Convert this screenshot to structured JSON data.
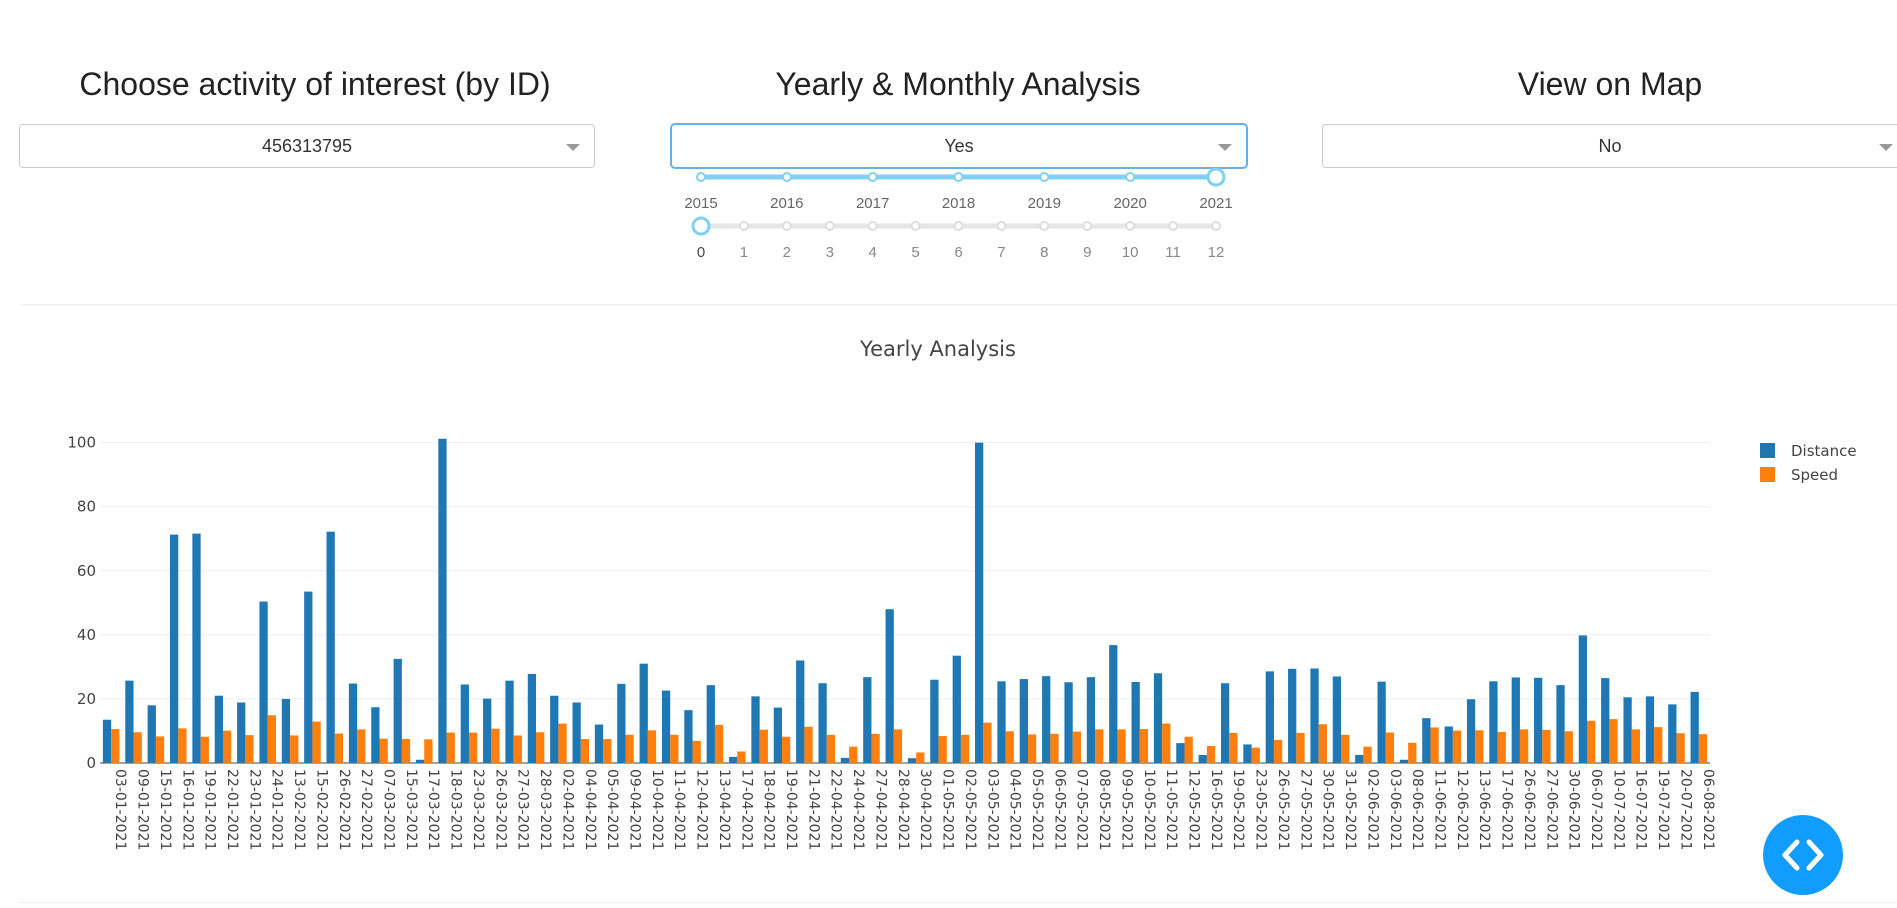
{
  "controls": {
    "activity": {
      "title": "Choose activity of interest (by ID)",
      "value": "456313795"
    },
    "analysis": {
      "title": "Yearly & Monthly Analysis",
      "value": "Yes"
    },
    "map": {
      "title": "View on Map",
      "value": "No"
    }
  },
  "year_slider": {
    "marks": [
      "2015",
      "2016",
      "2017",
      "2018",
      "2019",
      "2020",
      "2021"
    ],
    "selected": "2021"
  },
  "month_slider": {
    "marks": [
      "0",
      "1",
      "2",
      "3",
      "4",
      "5",
      "6",
      "7",
      "8",
      "9",
      "10",
      "11",
      "12"
    ],
    "selected": "0"
  },
  "colors": {
    "distance": "#1f77b4",
    "speed": "#ff7f0e",
    "accent": "#119dff",
    "slider": "#7fd0f2"
  },
  "icons": {
    "fab": "code-arrows-icon",
    "caret": "chevron-down-icon"
  },
  "chart_data": {
    "type": "bar",
    "title": "Yearly Analysis",
    "xlabel": "",
    "ylabel": "",
    "ylim": [
      0,
      103
    ],
    "yticks": [
      0,
      20,
      40,
      60,
      80,
      100
    ],
    "legend_position": "top-right",
    "grid": true,
    "categories": [
      "03-01-2021",
      "09-01-2021",
      "15-01-2021",
      "16-01-2021",
      "19-01-2021",
      "22-01-2021",
      "23-01-2021",
      "24-01-2021",
      "13-02-2021",
      "15-02-2021",
      "26-02-2021",
      "27-02-2021",
      "07-03-2021",
      "15-03-2021",
      "17-03-2021",
      "18-03-2021",
      "23-03-2021",
      "26-03-2021",
      "27-03-2021",
      "28-03-2021",
      "02-04-2021",
      "04-04-2021",
      "05-04-2021",
      "09-04-2021",
      "10-04-2021",
      "11-04-2021",
      "12-04-2021",
      "13-04-2021",
      "17-04-2021",
      "18-04-2021",
      "19-04-2021",
      "21-04-2021",
      "22-04-2021",
      "24-04-2021",
      "27-04-2021",
      "28-04-2021",
      "30-04-2021",
      "01-05-2021",
      "02-05-2021",
      "03-05-2021",
      "04-05-2021",
      "05-05-2021",
      "06-05-2021",
      "07-05-2021",
      "08-05-2021",
      "09-05-2021",
      "10-05-2021",
      "11-05-2021",
      "12-05-2021",
      "16-05-2021",
      "19-05-2021",
      "23-05-2021",
      "26-05-2021",
      "27-05-2021",
      "30-05-2021",
      "31-05-2021",
      "02-06-2021",
      "03-06-2021",
      "08-06-2021",
      "11-06-2021",
      "12-06-2021",
      "13-06-2021",
      "17-06-2021",
      "26-06-2021",
      "27-06-2021",
      "30-06-2021",
      "06-07-2021",
      "10-07-2021",
      "16-07-2021",
      "19-07-2021",
      "20-07-2021",
      "06-08-2021"
    ],
    "series": [
      {
        "name": "Distance",
        "values": [
          13.5,
          25.7,
          18,
          71.3,
          71.6,
          21,
          18.9,
          50.4,
          20,
          53.5,
          72.2,
          24.8,
          17.4,
          32.5,
          1,
          101.2,
          24.5,
          20.1,
          25.7,
          27.8,
          21,
          18.9,
          12,
          24.7,
          31,
          22.6,
          16.5,
          24.3,
          1.9,
          20.8,
          17.3,
          32,
          24.9,
          1.6,
          26.8,
          48,
          1.5,
          26,
          33.5,
          100,
          25.5,
          26.2,
          27.1,
          25.2,
          26.8,
          36.8,
          25.3,
          28,
          6.2,
          2.5,
          24.9,
          5.8,
          28.6,
          29.4,
          29.5,
          27,
          2.5,
          25.4,
          1,
          14,
          11.4,
          19.9,
          25.5,
          26.7,
          26.6,
          24.3,
          39.8,
          26.5,
          20.5,
          20.8,
          18.3,
          22.2
        ]
      },
      {
        "name": "Speed",
        "values": [
          10.6,
          9.6,
          8.3,
          10.8,
          8.2,
          10.1,
          8.7,
          14.9,
          8.6,
          12.9,
          9.2,
          10.5,
          7.6,
          7.5,
          7.4,
          9.5,
          9.5,
          10.7,
          8.6,
          9.6,
          12.3,
          7.5,
          7.5,
          8.8,
          10.2,
          8.8,
          6.9,
          11.9,
          3.6,
          10.4,
          8.2,
          11.3,
          8.8,
          5.1,
          9.1,
          10.5,
          3.3,
          8.4,
          8.8,
          12.6,
          9.9,
          8.9,
          9.1,
          9.8,
          10.5,
          10.5,
          10.6,
          12.3,
          8.2,
          5.3,
          9.4,
          4.8,
          7.2,
          9.4,
          12.1,
          8.8,
          5.1,
          9.5,
          6.3,
          11.1,
          10.1,
          10.2,
          9.7,
          10.5,
          10.3,
          9.9,
          13.2,
          13.7,
          10.5,
          11.2,
          9.3,
          9
        ]
      }
    ]
  }
}
